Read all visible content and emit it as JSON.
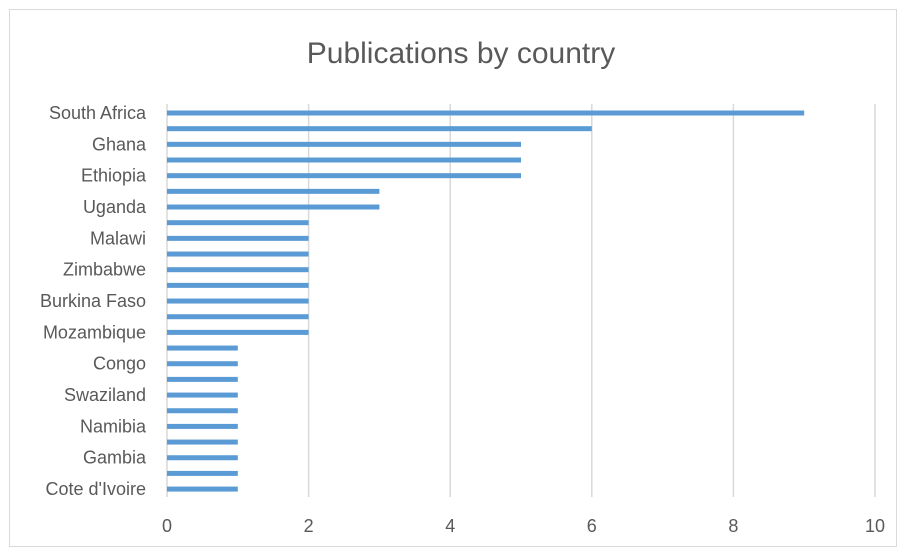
{
  "chart_data": {
    "type": "bar",
    "orientation": "horizontal",
    "title": "Publications by country",
    "xlabel": "",
    "ylabel": "",
    "xlim": [
      0,
      10
    ],
    "x_ticks": [
      0,
      2,
      4,
      6,
      8,
      10
    ],
    "grid": "vertical",
    "legend": "none",
    "bar_color": "#5b9bd5",
    "categories": [
      "South Africa",
      "",
      "Ghana",
      "",
      "Ethiopia",
      "",
      "Uganda",
      "",
      "Malawi",
      "",
      "Zimbabwe",
      "",
      "Burkina Faso",
      "",
      "Mozambique",
      "",
      "Congo",
      "",
      "Swaziland",
      "",
      "Namibia",
      "",
      "Gambia",
      "",
      "Cote d'Ivoire"
    ],
    "values": [
      9,
      6,
      5,
      5,
      5,
      3,
      3,
      2,
      2,
      2,
      2,
      2,
      2,
      2,
      2,
      1,
      1,
      1,
      1,
      1,
      1,
      1,
      1,
      1,
      1
    ]
  }
}
